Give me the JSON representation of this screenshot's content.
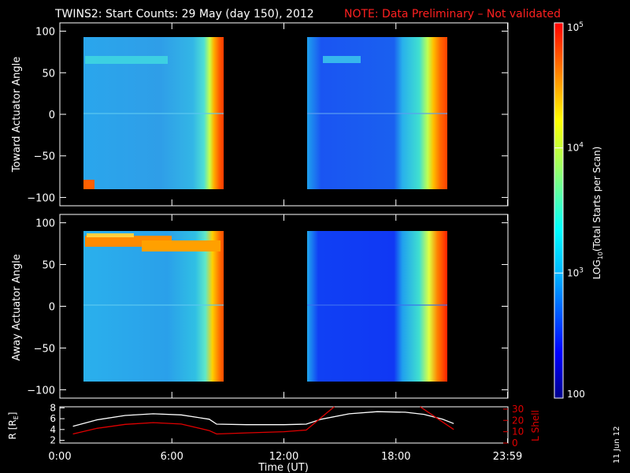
{
  "header": {
    "title": "TWINS2: Start Counts: 29 May (day 150), 2012",
    "note": "NOTE: Data Preliminary – Not validated"
  },
  "side_date": "11 Jun 12",
  "chart_data": [
    {
      "type": "heatmap",
      "panel": "toward",
      "ylabel": "Toward Actuator Angle",
      "ylim": [
        -110,
        110
      ],
      "yticks": [
        -100,
        -50,
        0,
        50,
        100
      ],
      "xlim": [
        0,
        24
      ],
      "data_segments_hours": [
        [
          0.7,
          8.4
        ],
        [
          13.4,
          21.1
        ]
      ],
      "angle_range": [
        -88,
        90
      ],
      "notable_features": [
        {
          "label": "warm band",
          "angle": 62,
          "hours": [
            0.8,
            5.2
          ]
        },
        {
          "label": "warm band",
          "angle": 62,
          "hours": [
            14.0,
            16.4
          ]
        }
      ]
    },
    {
      "type": "heatmap",
      "panel": "away",
      "ylabel": "Away Actuator Angle",
      "ylim": [
        -110,
        110
      ],
      "yticks": [
        -100,
        -50,
        0,
        50,
        100
      ],
      "xlim": [
        0,
        24
      ],
      "data_segments_hours": [
        [
          0.7,
          8.4
        ],
        [
          13.4,
          21.1
        ]
      ],
      "angle_range": [
        -88,
        90
      ],
      "notable_features": [
        {
          "label": "hot band",
          "angle": 78,
          "hours": [
            0.8,
            8.3
          ]
        }
      ]
    },
    {
      "type": "line",
      "panel": "orbit",
      "ylabel_left": "R [R",
      "ylabel_left_sub": "E",
      "ylabel_left_end": "]",
      "ylabel_right": "L Shell",
      "ylim_left": [
        1.5,
        8.2
      ],
      "ylim_right": [
        0,
        32
      ],
      "yticks_left": [
        2,
        4,
        6,
        8
      ],
      "yticks_right": [
        0,
        10,
        20,
        30
      ],
      "xlabel": "Time (UT)",
      "xticks": [
        "0:00",
        "6:00",
        "12:00",
        "18:00",
        "23:59"
      ],
      "xtick_hours": [
        0,
        6,
        12,
        18,
        23.98
      ],
      "series": [
        {
          "axis": "left",
          "color": "#ffffff",
          "x": [
            0.7,
            2,
            3.5,
            5,
            6.5,
            8,
            8.4,
            10,
            12,
            13.2,
            14,
            15.5,
            17,
            18.5,
            19.5,
            20.5,
            21.1
          ],
          "y": [
            4.6,
            5.8,
            6.6,
            6.9,
            6.7,
            5.9,
            5.0,
            4.9,
            4.9,
            5.0,
            5.9,
            6.9,
            7.3,
            7.2,
            6.8,
            5.9,
            5.1
          ]
        },
        {
          "axis": "right",
          "color": "#e00000",
          "x": [
            0.7,
            2,
            3.5,
            5,
            6.5,
            8,
            8.4,
            10,
            12,
            13.2,
            14.4,
            14.7
          ],
          "y": [
            8.0,
            13.0,
            16.5,
            18.0,
            16.8,
            11.0,
            8.0,
            9.0,
            10.0,
            11.5,
            28.0,
            33.0
          ]
        },
        {
          "axis": "right",
          "color": "#e00000",
          "x": [
            19.3,
            20.2,
            21.1
          ],
          "y": [
            33.0,
            22.0,
            12.0
          ]
        }
      ]
    },
    {
      "type": "colorbar",
      "label_prefix": "LOG",
      "label_sub": "10",
      "label_rest": "(Total Starts per Scan)",
      "scale": "log",
      "range": [
        100,
        100000
      ],
      "tick_labels": [
        {
          "base": "10",
          "exp": "5",
          "value": 100000
        },
        {
          "base": "10",
          "exp": "4",
          "value": 10000
        },
        {
          "base": "10",
          "exp": "3",
          "value": 1000
        },
        {
          "plain": "100",
          "value": 100
        }
      ]
    }
  ]
}
